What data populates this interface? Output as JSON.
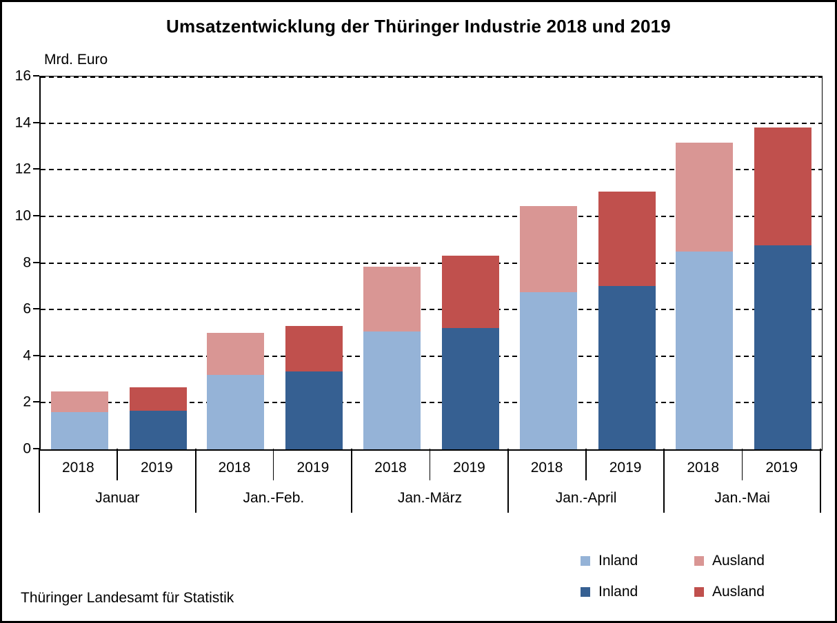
{
  "chart_data": {
    "type": "bar",
    "stacked": true,
    "title": "Umsatzentwicklung der Thüringer Industrie 2018 und 2019",
    "unit_label": "Mrd. Euro",
    "source": "Thüringer Landesamt für Statistik",
    "groups": [
      "Januar",
      "Jan.-Feb.",
      "Jan.-März",
      "Jan.-April",
      "Jan.-Mai"
    ],
    "ylim": [
      0,
      16
    ],
    "yticks": [
      0,
      2,
      4,
      6,
      8,
      10,
      12,
      14,
      16
    ],
    "grid": "horizontal-dashed",
    "legend_position": "bottom-right",
    "stacks": [
      {
        "year": "2018",
        "segments": [
          {
            "label": "Inland",
            "color": "#95B3D7",
            "values": [
              1.6,
              3.2,
              5.05,
              6.75,
              8.5
            ]
          },
          {
            "label": "Ausland",
            "color": "#D99694",
            "values": [
              0.9,
              1.8,
              2.8,
              3.7,
              4.65
            ]
          }
        ],
        "totals": [
          2.5,
          5.0,
          7.85,
          10.45,
          13.15
        ]
      },
      {
        "year": "2019",
        "segments": [
          {
            "label": "Inland",
            "color": "#366092",
            "values": [
              1.65,
              3.35,
              5.2,
              7.0,
              8.75
            ]
          },
          {
            "label": "Ausland",
            "color": "#C0504D",
            "values": [
              1.0,
              1.95,
              3.1,
              4.05,
              5.05
            ]
          }
        ],
        "totals": [
          2.65,
          5.3,
          8.3,
          11.05,
          13.8
        ]
      }
    ],
    "legend": {
      "rows": [
        [
          {
            "label": "Inland",
            "color": "#95B3D7"
          },
          {
            "label": "Ausland",
            "color": "#D99694"
          }
        ],
        [
          {
            "label": "Inland",
            "color": "#366092"
          },
          {
            "label": "Ausland",
            "color": "#C0504D"
          }
        ]
      ]
    }
  }
}
